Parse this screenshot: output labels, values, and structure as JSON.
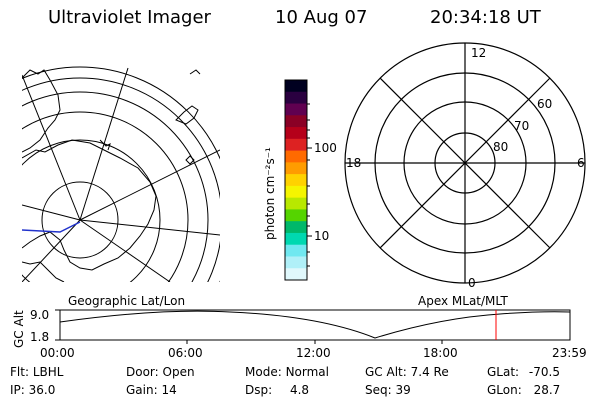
{
  "header": {
    "instrument": "Ultraviolet Imager",
    "date": "10 Aug 07",
    "time": "20:34:18 UT"
  },
  "colorbar": {
    "unit_label": "photon cm⁻²s⁻¹",
    "ticks": [
      "100",
      "10"
    ],
    "colors": [
      "#000020",
      "#2a0040",
      "#600050",
      "#8a0025",
      "#b5001a",
      "#dd2222",
      "#ff6a00",
      "#ff9c00",
      "#ffd200",
      "#f5f500",
      "#b8e800",
      "#55d400",
      "#00b86a",
      "#00d8b0",
      "#70e8f0",
      "#b0f0f8",
      "#e0f8fc"
    ]
  },
  "left_panel": {
    "label": "Geographic Lat/Lon"
  },
  "right_panel": {
    "label": "Apex MLat/MLT",
    "mlt_labels": [
      "12",
      "18",
      "6",
      "0"
    ],
    "lat_labels": [
      "60",
      "70",
      "80"
    ]
  },
  "timeline": {
    "ylabel": "GC Alt",
    "y_ticks": [
      "9.0",
      "1.8"
    ],
    "x_ticks": [
      "00:00",
      "06:00",
      "12:00",
      "18:00",
      "23:59"
    ],
    "marker_color": "#ff0000"
  },
  "status": {
    "row1": [
      {
        "label": "Flt:",
        "value": "LBHL"
      },
      {
        "label": "Door:",
        "value": "Open"
      },
      {
        "label": "Mode:",
        "value": "Normal"
      },
      {
        "label": "GC Alt:",
        "value": "7.4 Re"
      },
      {
        "label": "GLat:",
        "value": "-70.5"
      }
    ],
    "row2": [
      {
        "label": "IP:",
        "value": "36.0"
      },
      {
        "label": "Gain:",
        "value": "14"
      },
      {
        "label": "Dsp:",
        "value": "4.8"
      },
      {
        "label": "Seq:",
        "value": "39"
      },
      {
        "label": "GLon:",
        "value": "28.7"
      }
    ]
  }
}
